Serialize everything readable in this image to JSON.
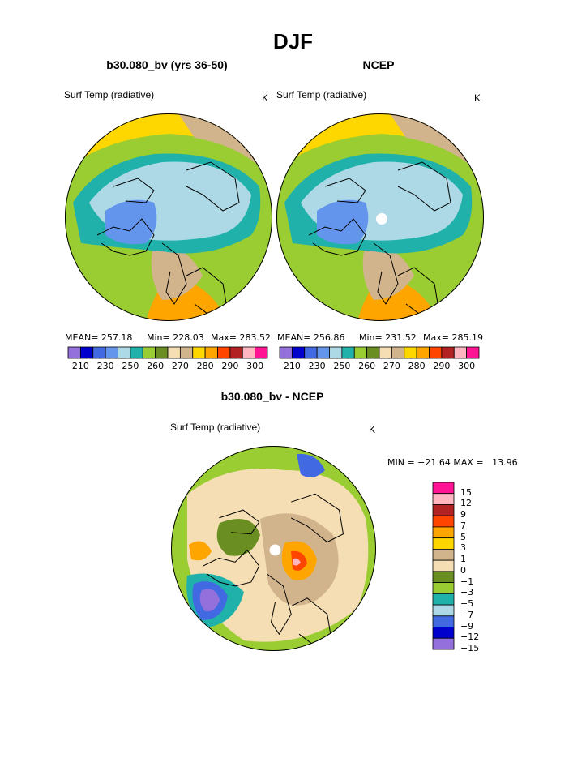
{
  "main_title": "DJF",
  "colors": {
    "ocean_ice": "#add8e6",
    "land_line": "#000000",
    "hole": "#ffffff"
  },
  "chart_data": [
    {
      "type": "heatmap",
      "projection": "polar-stereographic",
      "title": "b30.080_bv (yrs 36-50)",
      "left_label": "Surf Temp (radiative)",
      "right_label": "K",
      "stats": {
        "mean": "MEAN= 257.18",
        "min": "Min= 228.03",
        "max": "Max= 283.52"
      },
      "colorbar": {
        "orientation": "horizontal",
        "colors": [
          "#9370db",
          "#0000cd",
          "#4169e1",
          "#6495ed",
          "#add8e6",
          "#20b2aa",
          "#9acd32",
          "#6b8e23",
          "#f5deb3",
          "#d2b48c",
          "#ffd700",
          "#ffa500",
          "#ff4500",
          "#b22222",
          "#ffb6c1",
          "#ff1493"
        ],
        "tick_labels": [
          "210",
          "230",
          "250",
          "260",
          "270",
          "280",
          "290",
          "300"
        ]
      }
    },
    {
      "type": "heatmap",
      "projection": "polar-stereographic",
      "title": "NCEP",
      "left_label": "Surf Temp (radiative)",
      "right_label": "K",
      "stats": {
        "mean": "MEAN= 256.86",
        "min": "Min= 231.52",
        "max": "Max= 285.19"
      },
      "colorbar": {
        "orientation": "horizontal",
        "colors": [
          "#9370db",
          "#0000cd",
          "#4169e1",
          "#6495ed",
          "#add8e6",
          "#20b2aa",
          "#9acd32",
          "#6b8e23",
          "#f5deb3",
          "#d2b48c",
          "#ffd700",
          "#ffa500",
          "#ff4500",
          "#b22222",
          "#ffb6c1",
          "#ff1493"
        ],
        "tick_labels": [
          "210",
          "230",
          "250",
          "260",
          "270",
          "280",
          "290",
          "300"
        ]
      }
    },
    {
      "type": "heatmap",
      "projection": "polar-stereographic",
      "title": "b30.080_bv - NCEP",
      "left_label": "Surf Temp (radiative)",
      "right_label": "K",
      "minmax": "MIN = −21.64 MAX =   13.96",
      "colorbar": {
        "orientation": "vertical",
        "colors_top_to_bottom": [
          "#ff1493",
          "#ffb6c1",
          "#b22222",
          "#ff4500",
          "#ffa500",
          "#ffd700",
          "#d2b48c",
          "#f5deb3",
          "#6b8e23",
          "#9acd32",
          "#20b2aa",
          "#add8e6",
          "#4169e1",
          "#0000cd",
          "#9370db"
        ],
        "tick_labels": [
          "15",
          "12",
          "9",
          "7",
          "5",
          "3",
          "1",
          "0",
          "−1",
          "−3",
          "−5",
          "−7",
          "−9",
          "−12",
          "−15"
        ]
      }
    }
  ]
}
